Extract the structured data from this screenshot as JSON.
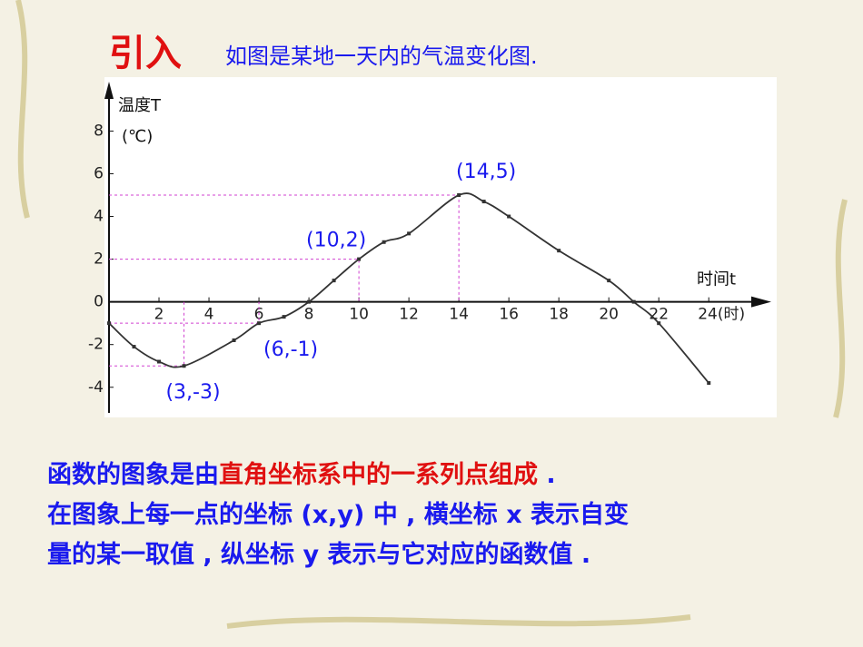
{
  "heading": {
    "title": "引入",
    "subtitle": "如图是某地一天内的气温变化图."
  },
  "paragraph": {
    "line1_start": "函数的图象是由",
    "line1_highlight": "直角坐标系中的一系列点组成",
    "line1_end": " .",
    "line2": "在图象上每一点的坐标 (x,y) 中 , 横坐标 x 表示自变",
    "line3": "量的某一取值 , 纵坐标 y 表示与它对应的函数值 ."
  },
  "chart_data": {
    "type": "line",
    "y_label": "温度T",
    "y_unit": "(℃)",
    "x_label": "时间t",
    "x": [
      0,
      1,
      2,
      3,
      5,
      6,
      7,
      8,
      9,
      10,
      11,
      12,
      14,
      15,
      16,
      18,
      20,
      21,
      22,
      24
    ],
    "series": [
      {
        "color": "#333333",
        "values": [
          -1,
          -2.1,
          -2.8,
          -3,
          -1.8,
          -1,
          -0.7,
          0,
          1,
          2,
          2.8,
          3.2,
          5,
          4.7,
          4,
          2.4,
          1,
          0,
          -1,
          -3.8
        ]
      }
    ],
    "xlim": [
      0,
      26.5
    ],
    "ylim": [
      -5.2,
      10.1
    ],
    "xticks": [
      2,
      4,
      6,
      8,
      10,
      12,
      14,
      16,
      18,
      20,
      22,
      {
        "value": 24,
        "label": "24(时)"
      }
    ],
    "yticks": [
      -4,
      -2,
      0,
      2,
      4,
      6,
      8
    ],
    "annotations": [
      {
        "label": "(3,-3)",
        "x": 3,
        "y": -3
      },
      {
        "label": "(6,-1)",
        "x": 6,
        "y": -1
      },
      {
        "label": "(10,2)",
        "x": 10,
        "y": 2
      },
      {
        "label": "(14,5)",
        "x": 14,
        "y": 5
      }
    ],
    "guide_color": "#d040d0",
    "annotation_color": "#1a1aee",
    "grid": false
  }
}
